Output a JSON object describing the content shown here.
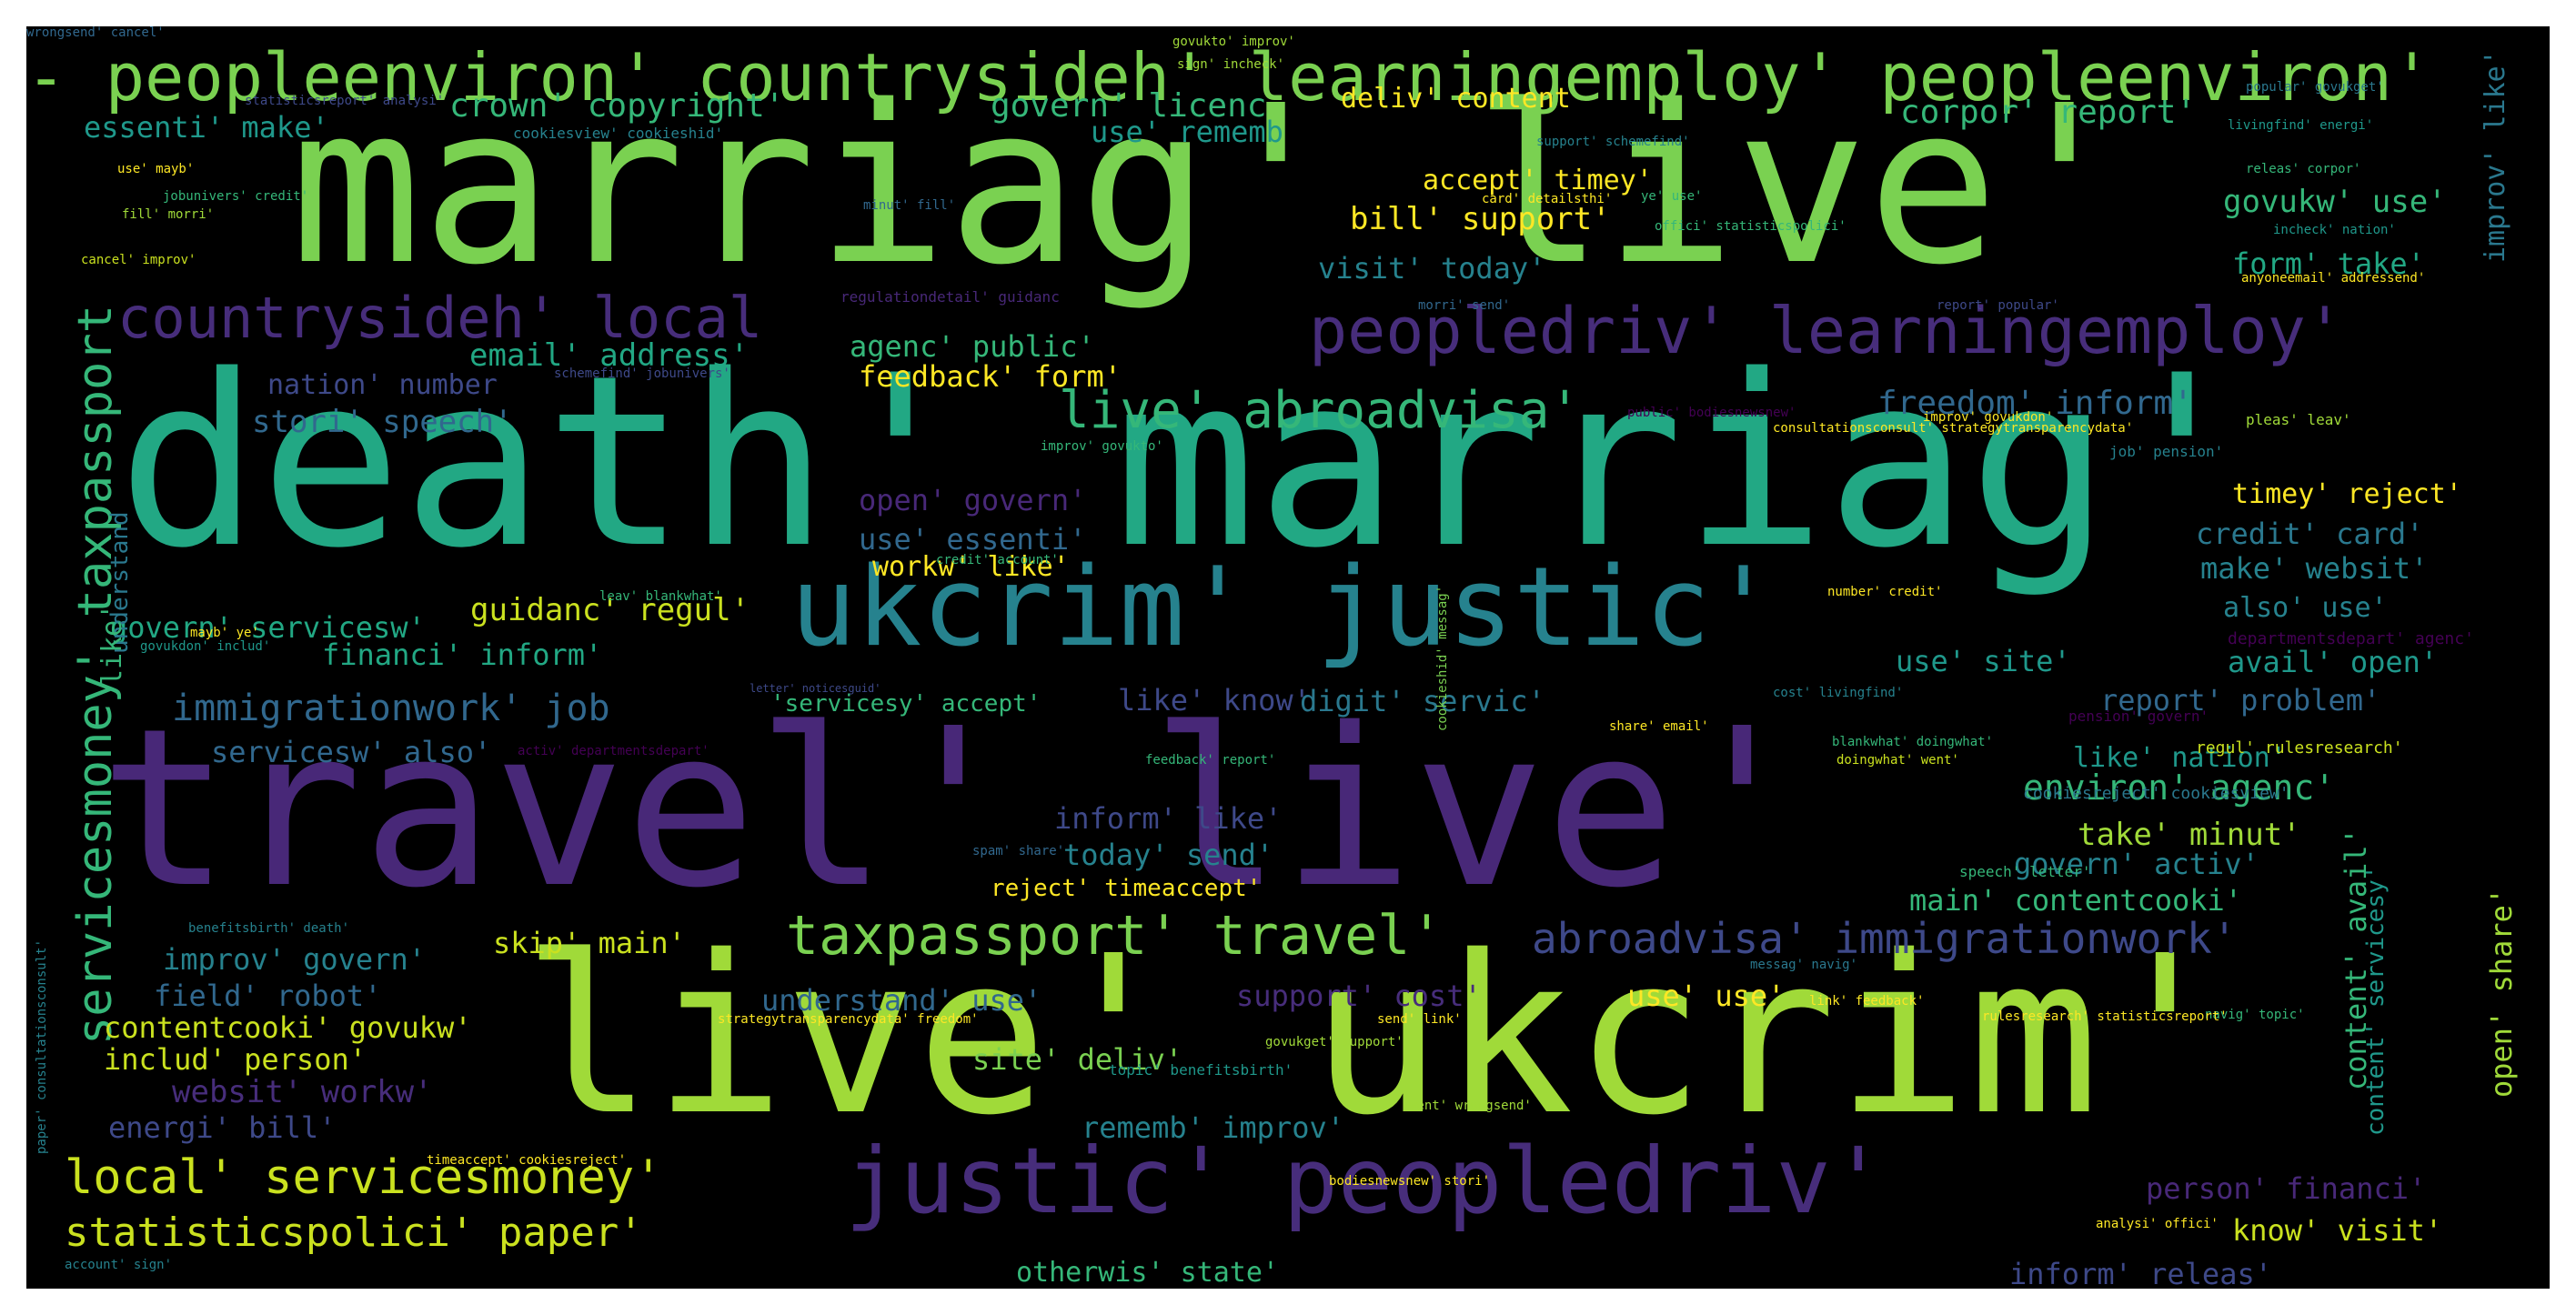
{
  "palette": {
    "background": "#000000",
    "frame": "#ffffff",
    "colors": [
      "#7ad151",
      "#a0da39",
      "#cae11f",
      "#fde725",
      "#35b779",
      "#22a884",
      "#1f988b",
      "#26828e",
      "#2a788e",
      "#31688e",
      "#3e4989",
      "#472d7b",
      "#482878",
      "#440154"
    ]
  },
  "words": [
    {
      "text": "- peopleenviron' countrysideh' learningemploy' peopleenviron'",
      "color": "#7ad151"
    },
    {
      "text": "marriag' live'",
      "color": "#7ad151"
    },
    {
      "text": "death' marriag'",
      "color": "#22a884"
    },
    {
      "text": "travel' live'",
      "color": "#482878"
    },
    {
      "text": "live' ukcrim'",
      "color": "#a0da39"
    },
    {
      "text": "ukcrim' justic'",
      "color": "#26828e"
    },
    {
      "text": "justic' peopledriv'",
      "color": "#472d7b"
    },
    {
      "text": "peopledriv' learningemploy'",
      "color": "#472d7b"
    },
    {
      "text": "countrysideh' local",
      "color": "#472d7b"
    },
    {
      "text": "servicesmoney' taxpassport",
      "color": "#35b779"
    },
    {
      "text": "taxpassport' travel'",
      "color": "#7ad151"
    },
    {
      "text": "abroadvisa' immigrationwork'",
      "color": "#3e4989"
    },
    {
      "text": "live' abroadvisa'",
      "color": "#35b779"
    },
    {
      "text": "local' servicesmoney'",
      "color": "#cae11f"
    },
    {
      "text": "statisticspolici' paper'",
      "color": "#cae11f"
    },
    {
      "text": "immigrationwork' job",
      "color": "#31688e"
    },
    {
      "text": "freedom' inform'",
      "color": "#31688e"
    },
    {
      "text": "crown' copyright'",
      "color": "#35b779"
    },
    {
      "text": "govern' licenc",
      "color": "#35b779"
    },
    {
      "text": "deliv' content",
      "color": "#fde725"
    },
    {
      "text": "corpor' report'",
      "color": "#35b779"
    },
    {
      "text": "essenti' make'",
      "color": "#1f988b"
    },
    {
      "text": "use' rememb",
      "color": "#1f988b"
    },
    {
      "text": "accept' timey'",
      "color": "#fde725"
    },
    {
      "text": "bill' support'",
      "color": "#fde725"
    },
    {
      "text": "govukw' use'",
      "color": "#35b779"
    },
    {
      "text": "visit' today'",
      "color": "#26828e"
    },
    {
      "text": "form' take'",
      "color": "#22a884"
    },
    {
      "text": "email' address'",
      "color": "#22a884"
    },
    {
      "text": "nation' number",
      "color": "#3e4989"
    },
    {
      "text": "agenc' public'",
      "color": "#35b779"
    },
    {
      "text": "feedback' form'",
      "color": "#fde725"
    },
    {
      "text": "stori' speech'",
      "color": "#31688e"
    },
    {
      "text": "open' govern'",
      "color": "#482878"
    },
    {
      "text": "use' essenti'",
      "color": "#31688e"
    },
    {
      "text": "workw' like'",
      "color": "#fde725"
    },
    {
      "text": "timey' reject'",
      "color": "#fde725"
    },
    {
      "text": "credit' card'",
      "color": "#2a788e"
    },
    {
      "text": "make' websit'",
      "color": "#26828e"
    },
    {
      "text": "also' use'",
      "color": "#26828e"
    },
    {
      "text": "avail' open'",
      "color": "#1f988b"
    },
    {
      "text": "govern' servicesw'",
      "color": "#22a884"
    },
    {
      "text": "guidanc' regul'",
      "color": "#cae11f"
    },
    {
      "text": "financi' inform'",
      "color": "#22a884"
    },
    {
      "text": "use' site'",
      "color": "#1f988b"
    },
    {
      "text": "like' know'",
      "color": "#3e4989"
    },
    {
      "text": "digit' servic'",
      "color": "#2a788e"
    },
    {
      "text": "report' problem'",
      "color": "#31688e"
    },
    {
      "text": "servicesw' also'",
      "color": "#31688e"
    },
    {
      "text": "like' nation'",
      "color": "#1f988b"
    },
    {
      "text": "environ' agenc'",
      "color": "#35b779"
    },
    {
      "text": "inform' like'",
      "color": "#3e4989"
    },
    {
      "text": "today' send'",
      "color": "#26828e"
    },
    {
      "text": "take' minut'",
      "color": "#a0da39"
    },
    {
      "text": "govern' activ'",
      "color": "#26828e"
    },
    {
      "text": "main' contentcooki'",
      "color": "#35b779"
    },
    {
      "text": "reject' timeaccept'",
      "color": "#fde725"
    },
    {
      "text": "improv' govern'",
      "color": "#26828e"
    },
    {
      "text": "skip' main'",
      "color": "#cae11f"
    },
    {
      "text": "field' robot'",
      "color": "#31688e"
    },
    {
      "text": "understand' use'",
      "color": "#31688e"
    },
    {
      "text": "support' cost'",
      "color": "#472d7b"
    },
    {
      "text": "use' use'",
      "color": "#fde725"
    },
    {
      "text": "contentcooki' govukw'",
      "color": "#cae11f"
    },
    {
      "text": "includ' person'",
      "color": "#cae11f"
    },
    {
      "text": "site' deliv'",
      "color": "#7ad151"
    },
    {
      "text": "websit' workw'",
      "color": "#472d7b"
    },
    {
      "text": "energi' bill'",
      "color": "#3e4989"
    },
    {
      "text": "rememb' improv'",
      "color": "#26828e"
    },
    {
      "text": "person' financi'",
      "color": "#482878"
    },
    {
      "text": "know' visit'",
      "color": "#cae11f"
    },
    {
      "text": "otherwis' state'",
      "color": "#35b779"
    },
    {
      "text": "inform' releas'",
      "color": "#3e4989"
    },
    {
      "text": "content' avail'",
      "color": "#35b779"
    },
    {
      "text": "open' share'",
      "color": "#a0da39"
    },
    {
      "text": "content' servicesy'",
      "color": "#1f988b"
    },
    {
      "text": "improv' like'",
      "color": "#2a788e"
    },
    {
      "text": "understand",
      "color": "#2a788e"
    },
    {
      "text": "like'",
      "color": "#35b779"
    },
    {
      "text": "'servicesy' accept'",
      "color": "#35b779"
    },
    {
      "text": "cookiesreject' cookiesview'",
      "color": "#2a788e"
    },
    {
      "text": "regul' rulesresearch'",
      "color": "#cae11f"
    },
    {
      "text": "job' pension'",
      "color": "#26828e"
    },
    {
      "text": "pension' govern'",
      "color": "#440154"
    },
    {
      "text": "speech' letter'",
      "color": "#35b779"
    },
    {
      "text": "consultationsconsult' strategytransparencydata'",
      "color": "#fde725"
    },
    {
      "text": "pleas' leav'",
      "color": "#a0da39"
    },
    {
      "text": "departmentsdepart' agenc'",
      "color": "#440154"
    },
    {
      "text": "livingfind' energi'",
      "color": "#1f988b"
    },
    {
      "text": "popular' govukget'",
      "color": "#2a788e"
    },
    {
      "text": "releas' corpor'",
      "color": "#35b779"
    },
    {
      "text": "incheck' nation'",
      "color": "#1f988b"
    },
    {
      "text": "anyoneemail' addressend'",
      "color": "#fde725"
    },
    {
      "text": "report' popular'",
      "color": "#3e4989"
    },
    {
      "text": "morri' send'",
      "color": "#31688e"
    },
    {
      "text": "offici' statisticspolici'",
      "color": "#35b779"
    },
    {
      "text": "card' detailsthi'",
      "color": "#fde725"
    },
    {
      "text": "support' schemefind'",
      "color": "#26828e"
    },
    {
      "text": "ye' use'",
      "color": "#35b779"
    },
    {
      "text": "govukto' improv'",
      "color": "#a0da39"
    },
    {
      "text": "sign' incheck'",
      "color": "#a0da39"
    },
    {
      "text": "statisticsreport' analysi'",
      "color": "#3e4989"
    },
    {
      "text": "cookiesview' cookieshid'",
      "color": "#26828e"
    },
    {
      "text": "jobunivers' credit'",
      "color": "#35b779"
    },
    {
      "text": "fill' morri'",
      "color": "#a0da39"
    },
    {
      "text": "cancel' improv'",
      "color": "#cae11f"
    },
    {
      "text": "regulationdetail' guidanc",
      "color": "#482878"
    },
    {
      "text": "schemefind' jobunivers'",
      "color": "#3e4989"
    },
    {
      "text": "public' bodiesnewsnew'",
      "color": "#440154"
    },
    {
      "text": "improv' govukdon'",
      "color": "#fde725"
    },
    {
      "text": "improv' govukto'",
      "color": "#35b779"
    },
    {
      "text": "letter' noticesguid'",
      "color": "#3e4989"
    },
    {
      "text": "feedback' report'",
      "color": "#35b779"
    },
    {
      "text": "activ' departmentsdepart'",
      "color": "#440154"
    },
    {
      "text": "cookieshid' messag'",
      "color": "#7ad151"
    },
    {
      "text": "blankwhat' doingwhat'",
      "color": "#35b779"
    },
    {
      "text": "doingwhat' went'",
      "color": "#cae11f"
    },
    {
      "text": "share' email'",
      "color": "#fde725"
    },
    {
      "text": "cost' livingfind'",
      "color": "#26828e"
    },
    {
      "text": "benefitsbirth' death'",
      "color": "#26828e"
    },
    {
      "text": "strategytransparencydata' freedom'",
      "color": "#fde725"
    },
    {
      "text": "messag' navig'",
      "color": "#2a788e"
    },
    {
      "text": "link' feedback'",
      "color": "#fde725"
    },
    {
      "text": "navig' topic'",
      "color": "#35b779"
    },
    {
      "text": "rulesresearch' statisticsreport'",
      "color": "#fde725"
    },
    {
      "text": "topic' benefitsbirth'",
      "color": "#1f988b"
    },
    {
      "text": "send' link'",
      "color": "#fde725"
    },
    {
      "text": "govukget' support'",
      "color": "#a0da39"
    },
    {
      "text": "bodiesnewsnew' stori'",
      "color": "#fde725"
    },
    {
      "text": "timeaccept' cookiesreject'",
      "color": "#fde725"
    },
    {
      "text": "analysi' offici'",
      "color": "#fde725"
    },
    {
      "text": "account' sign'",
      "color": "#26828e"
    },
    {
      "text": "paper' consultationsconsult'",
      "color": "#26828e"
    },
    {
      "text": "went' wrongsend'",
      "color": "#a0da39"
    },
    {
      "text": "spam' share'",
      "color": "#31688e"
    },
    {
      "text": "mayb' ye'",
      "color": "#fde725"
    },
    {
      "text": "govukdon' includ'",
      "color": "#1f988b"
    },
    {
      "text": "credit' account'",
      "color": "#35b779"
    },
    {
      "text": "leav' blankwhat'",
      "color": "#35b779"
    },
    {
      "text": "number' credit'",
      "color": "#fde725"
    },
    {
      "text": "use' mayb'",
      "color": "#fde725"
    },
    {
      "text": "minut' fill'",
      "color": "#31688e"
    },
    {
      "text": "wrongsend' cancel'",
      "color": "#31688e"
    }
  ]
}
